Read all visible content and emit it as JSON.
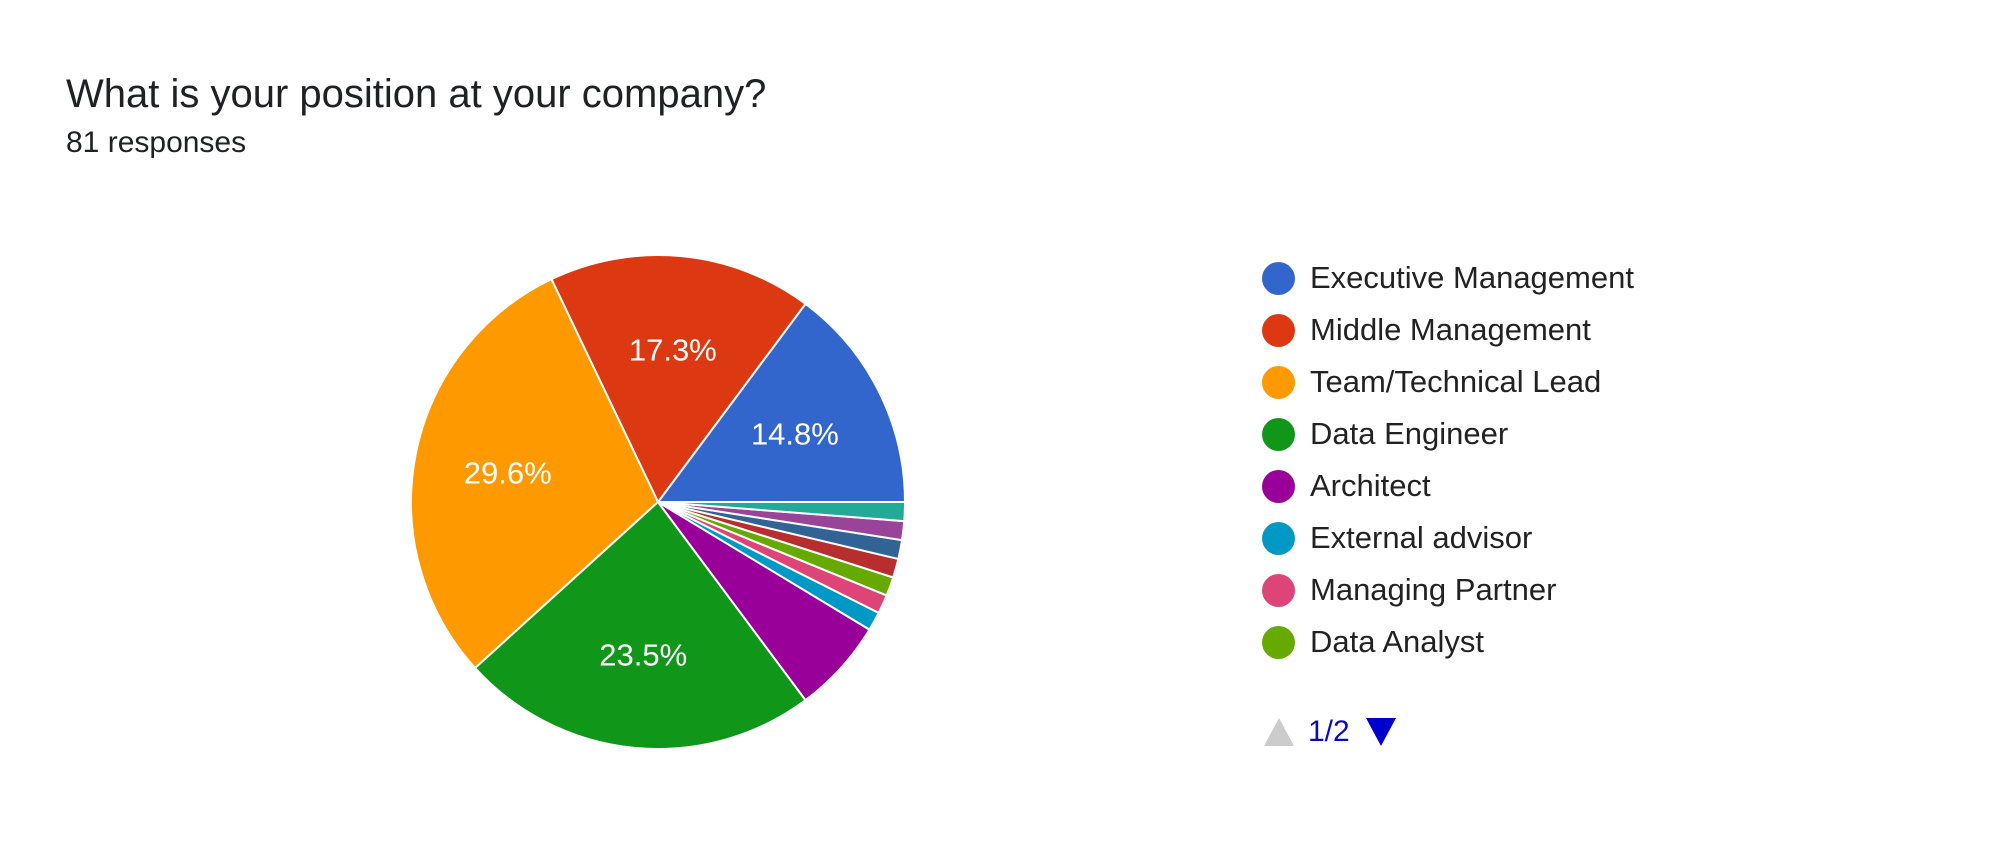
{
  "header": {
    "title": "What is your position at your company?",
    "subtitle": "81 responses"
  },
  "chart_data": {
    "type": "pie",
    "title": "What is your position at your company?",
    "total_responses": 81,
    "slices": [
      {
        "label": "Executive Management",
        "count": 12,
        "percent_label": "14.8%",
        "color": "#3366cc"
      },
      {
        "label": "Middle Management",
        "count": 14,
        "percent_label": "17.3%",
        "color": "#dc3912"
      },
      {
        "label": "Team/Technical Lead",
        "count": 24,
        "percent_label": "29.6%",
        "color": "#ff9900"
      },
      {
        "label": "Data Engineer",
        "count": 19,
        "percent_label": "23.5%",
        "color": "#109618"
      },
      {
        "label": "Architect",
        "count": 5,
        "percent_label": "",
        "color": "#990099"
      },
      {
        "label": "External advisor",
        "count": 1,
        "percent_label": "",
        "color": "#0099c6"
      },
      {
        "label": "Managing Partner",
        "count": 1,
        "percent_label": "",
        "color": "#dd4477"
      },
      {
        "label": "Data Analyst",
        "count": 1,
        "percent_label": "",
        "color": "#66aa00"
      },
      {
        "label": "",
        "count": 1,
        "percent_label": "",
        "color": "#b82e2e"
      },
      {
        "label": "",
        "count": 1,
        "percent_label": "",
        "color": "#316395"
      },
      {
        "label": "",
        "count": 1,
        "percent_label": "",
        "color": "#994499"
      },
      {
        "label": "",
        "count": 1,
        "percent_label": "",
        "color": "#22aa99"
      }
    ],
    "start_angle_deg": 90,
    "direction": "clockwise-from-east",
    "legend_position": "right"
  },
  "legend": {
    "items": [
      {
        "label": "Executive Management",
        "color": "#3366cc"
      },
      {
        "label": "Middle Management",
        "color": "#dc3912"
      },
      {
        "label": "Team/Technical Lead",
        "color": "#ff9900"
      },
      {
        "label": "Data Engineer",
        "color": "#109618"
      },
      {
        "label": "Architect",
        "color": "#990099"
      },
      {
        "label": "External advisor",
        "color": "#0099c6"
      },
      {
        "label": "Managing Partner",
        "color": "#dd4477"
      },
      {
        "label": "Data Analyst",
        "color": "#66aa00"
      }
    ]
  },
  "pager": {
    "text": "1/2",
    "up_icon": "triangle-up-icon",
    "down_icon": "triangle-down-icon",
    "up_color": "#cccccc",
    "down_color": "#0000cc"
  }
}
